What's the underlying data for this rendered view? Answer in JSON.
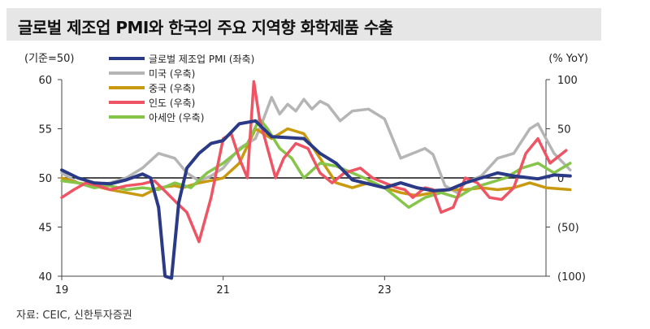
{
  "title": "글로벌 제조업 PMI와 한국의 주요 지역향 화학제품 수출",
  "source": "자료: CEIC, 신한투자증권",
  "colors": {
    "pmi": "#2b3a86",
    "us": "#b5b5b5",
    "china": "#c99a10",
    "india": "#ee5464",
    "asean": "#86c44a"
  },
  "chart_data": {
    "type": "line",
    "left_unit": "(기준=50)",
    "right_unit": "(% YoY)",
    "x_tick_labels": [
      "19",
      "21",
      "23"
    ],
    "x_tick_positions": [
      2019,
      2021,
      2023
    ],
    "x_range": [
      2019.0,
      2025.0
    ],
    "y_left": {
      "range": [
        40,
        60
      ],
      "ticks": [
        "40",
        "45",
        "50",
        "55",
        "60"
      ],
      "tick_values": [
        40,
        45,
        50,
        55,
        60
      ]
    },
    "y_right": {
      "range": [
        -100,
        100
      ],
      "ticks": [
        "(100)",
        "(50)",
        "0",
        "50",
        "100"
      ],
      "tick_values": [
        -100,
        -50,
        0,
        50,
        100
      ]
    },
    "legend": [
      "글로벌 제조업 PMI (좌축)",
      "미국 (우축)",
      "중국 (우축)",
      "인도 (우축)",
      "아세안 (우축)"
    ],
    "series": [
      {
        "name": "글로벌 제조업 PMI (좌축)",
        "axis": "left",
        "color_key": "pmi",
        "x": [
          2019.0,
          2019.2,
          2019.4,
          2019.6,
          2019.8,
          2020.0,
          2020.1,
          2020.2,
          2020.28,
          2020.36,
          2020.45,
          2020.55,
          2020.7,
          2020.85,
          2021.0,
          2021.2,
          2021.4,
          2021.6,
          2021.8,
          2022.0,
          2022.2,
          2022.4,
          2022.6,
          2022.8,
          2023.0,
          2023.2,
          2023.4,
          2023.6,
          2023.8,
          2024.0,
          2024.2,
          2024.4,
          2024.6,
          2024.9,
          2025.1,
          2025.3
        ],
        "y": [
          50.8,
          50.0,
          49.5,
          49.4,
          49.8,
          50.4,
          50.0,
          47.0,
          40.0,
          39.8,
          47.5,
          51.0,
          52.5,
          53.5,
          53.8,
          55.5,
          55.8,
          54.2,
          54.1,
          54.0,
          52.5,
          51.5,
          49.8,
          49.4,
          49.0,
          49.5,
          49.0,
          48.7,
          48.8,
          49.5,
          50.0,
          50.5,
          50.2,
          49.9,
          50.3,
          50.2
        ]
      },
      {
        "name": "미국 (우축)",
        "axis": "right",
        "color_key": "us",
        "x": [
          2019.0,
          2019.2,
          2019.4,
          2019.6,
          2019.8,
          2020.0,
          2020.2,
          2020.4,
          2020.55,
          2020.7,
          2020.85,
          2021.0,
          2021.2,
          2021.4,
          2021.5,
          2021.6,
          2021.7,
          2021.8,
          2021.9,
          2022.0,
          2022.1,
          2022.2,
          2022.3,
          2022.45,
          2022.6,
          2022.8,
          2023.0,
          2023.2,
          2023.35,
          2023.5,
          2023.6,
          2023.75,
          2023.9,
          2024.0,
          2024.2,
          2024.4,
          2024.6,
          2024.8,
          2024.9,
          2025.1,
          2025.3
        ],
        "y": [
          5,
          -5,
          -10,
          -5,
          0,
          10,
          25,
          20,
          5,
          -3,
          2,
          10,
          30,
          40,
          60,
          82,
          65,
          75,
          68,
          80,
          70,
          78,
          74,
          58,
          68,
          70,
          60,
          20,
          25,
          30,
          24,
          -8,
          -15,
          -5,
          2,
          20,
          25,
          50,
          55,
          25,
          8
        ]
      },
      {
        "name": "중국 (우축)",
        "axis": "right",
        "color_key": "china",
        "x": [
          2019.0,
          2019.2,
          2019.4,
          2019.6,
          2019.8,
          2020.0,
          2020.2,
          2020.4,
          2020.5,
          2020.7,
          2020.9,
          2021.0,
          2021.2,
          2021.4,
          2021.6,
          2021.8,
          2022.0,
          2022.2,
          2022.4,
          2022.6,
          2022.8,
          2023.0,
          2023.2,
          2023.4,
          2023.6,
          2023.8,
          2024.0,
          2024.2,
          2024.4,
          2024.6,
          2024.8,
          2025.0,
          2025.3
        ],
        "y": [
          0,
          -5,
          -8,
          -12,
          -15,
          -18,
          -10,
          -8,
          -10,
          -5,
          -2,
          0,
          15,
          50,
          40,
          50,
          45,
          20,
          -5,
          -10,
          -5,
          -10,
          -15,
          -18,
          -15,
          -12,
          -12,
          -10,
          -12,
          -10,
          -5,
          -10,
          -12
        ]
      },
      {
        "name": "인도 (우축)",
        "axis": "right",
        "color_key": "india",
        "x": [
          2019.0,
          2019.15,
          2019.3,
          2019.45,
          2019.6,
          2019.8,
          2020.0,
          2020.15,
          2020.3,
          2020.42,
          2020.55,
          2020.7,
          2020.85,
          2021.0,
          2021.1,
          2021.2,
          2021.3,
          2021.38,
          2021.45,
          2021.55,
          2021.65,
          2021.75,
          2021.9,
          2022.05,
          2022.2,
          2022.35,
          2022.5,
          2022.7,
          2022.85,
          2023.0,
          2023.15,
          2023.25,
          2023.35,
          2023.5,
          2023.6,
          2023.7,
          2023.85,
          2024.0,
          2024.15,
          2024.3,
          2024.45,
          2024.6,
          2024.75,
          2024.9,
          2025.05,
          2025.25
        ],
        "y": [
          -20,
          -12,
          -5,
          -8,
          -12,
          -8,
          -6,
          -3,
          -15,
          -25,
          -35,
          -65,
          -20,
          40,
          45,
          20,
          0,
          98,
          60,
          30,
          0,
          20,
          35,
          30,
          5,
          -5,
          5,
          10,
          0,
          -5,
          -10,
          -12,
          -20,
          -10,
          -12,
          -35,
          -30,
          0,
          -5,
          -20,
          -22,
          -10,
          25,
          40,
          15,
          28
        ]
      },
      {
        "name": "아세안 (우축)",
        "axis": "right",
        "color_key": "asean",
        "x": [
          2019.0,
          2019.2,
          2019.4,
          2019.6,
          2019.8,
          2020.0,
          2020.2,
          2020.4,
          2020.6,
          2020.8,
          2021.0,
          2021.15,
          2021.3,
          2021.45,
          2021.55,
          2021.7,
          2021.85,
          2022.0,
          2022.2,
          2022.4,
          2022.6,
          2022.8,
          2023.0,
          2023.15,
          2023.3,
          2023.5,
          2023.7,
          2023.9,
          2024.1,
          2024.3,
          2024.5,
          2024.7,
          2024.9,
          2025.1,
          2025.3
        ],
        "y": [
          -3,
          -5,
          -10,
          -8,
          -12,
          -10,
          -12,
          -5,
          -10,
          5,
          15,
          25,
          35,
          60,
          50,
          30,
          20,
          0,
          15,
          12,
          5,
          -2,
          -10,
          -20,
          -30,
          -20,
          -15,
          -20,
          -10,
          -5,
          0,
          10,
          15,
          5,
          15
        ]
      }
    ]
  }
}
